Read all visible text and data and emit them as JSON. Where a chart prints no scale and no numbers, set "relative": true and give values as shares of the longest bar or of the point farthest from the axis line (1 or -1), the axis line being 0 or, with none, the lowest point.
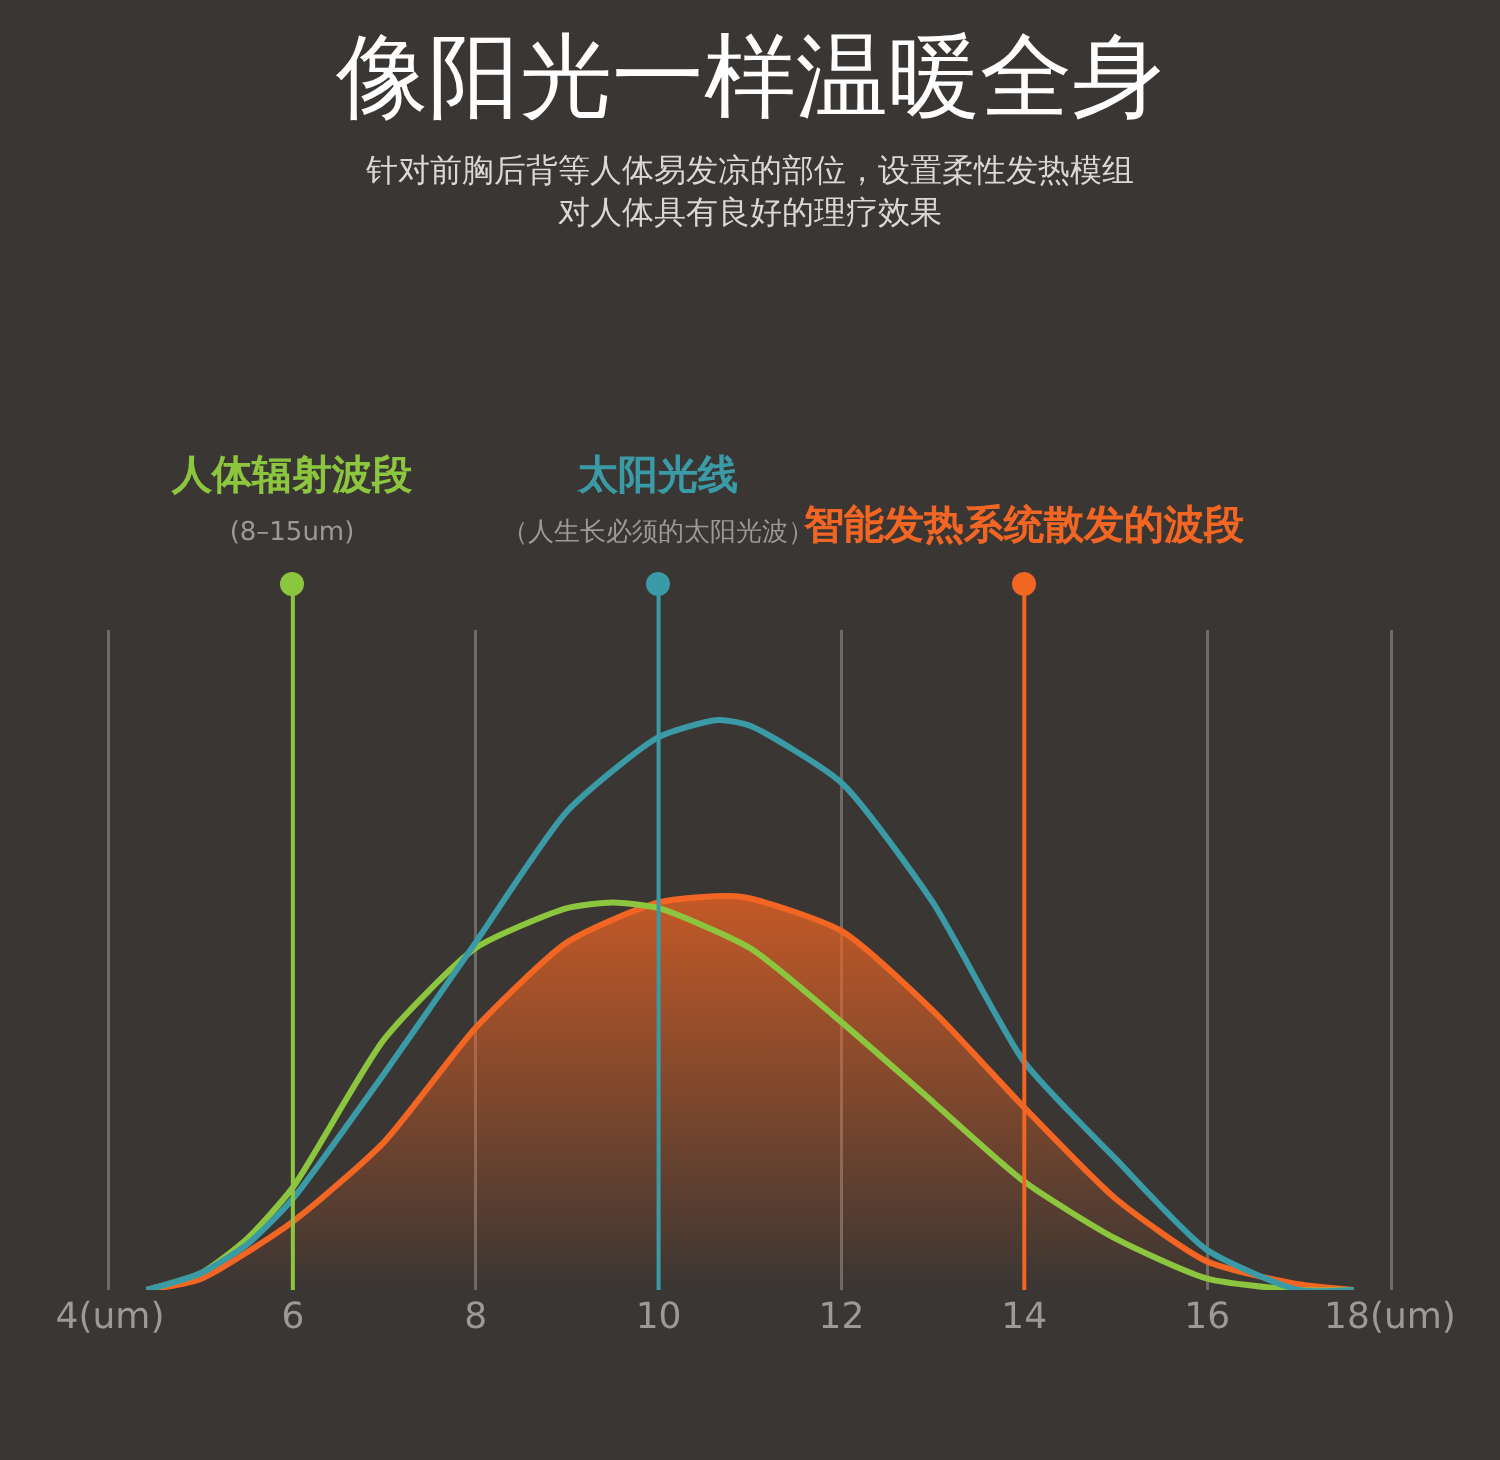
{
  "chart_data": {
    "type": "line",
    "title": "像阳光一样温暖全身",
    "subtitle": "针对前胸后背等人体易发凉的部位，设置柔性发热模组对人体具有良好的理疗效果",
    "relative": true,
    "xlim": [
      4,
      18
    ],
    "xticks": [
      {
        "value": 4,
        "label": "4(um)"
      },
      6,
      8,
      10,
      12,
      14,
      16,
      {
        "value": 18,
        "label": "18(um)"
      }
    ],
    "grid": "x",
    "tick_labels": "x",
    "marker": "none",
    "line_style": "solid",
    "series": [
      {
        "color": "#8cc63f",
        "x": [
          4.4,
          5,
          5.5,
          6,
          7,
          8,
          9,
          9.5,
          10,
          11,
          12,
          13,
          14,
          15,
          16,
          17,
          17.6
        ],
        "values": [
          0,
          0.03,
          0.09,
          0.18,
          0.44,
          0.6,
          0.67,
          0.68,
          0.67,
          0.6,
          0.47,
          0.33,
          0.19,
          0.09,
          0.02,
          0,
          0
        ]
      },
      {
        "color": "#3a9aa6",
        "x": [
          4.4,
          5,
          5.5,
          6,
          7,
          8,
          9,
          10,
          10.65,
          11,
          12,
          13,
          14,
          15,
          16,
          17,
          17.6
        ],
        "values": [
          0,
          0.03,
          0.08,
          0.16,
          0.38,
          0.61,
          0.84,
          0.97,
          1,
          0.99,
          0.89,
          0.68,
          0.4,
          0.23,
          0.07,
          0,
          0
        ]
      },
      {
        "type": "area",
        "color": "#f26522",
        "x": [
          4.4,
          5,
          6,
          7,
          8,
          9,
          10,
          10.9,
          12,
          13,
          14,
          15,
          16,
          17,
          17.6
        ],
        "values": [
          0,
          0.02,
          0.12,
          0.26,
          0.46,
          0.61,
          0.68,
          0.69,
          0.63,
          0.49,
          0.32,
          0.16,
          0.05,
          0.01,
          0
        ]
      }
    ],
    "ref_lines": [
      {
        "axis": "x",
        "value": 6,
        "label": "人体辐射波段(8–15um)",
        "color": "#8cc63f"
      },
      {
        "axis": "x",
        "value": 10,
        "label": "太阳光线（人生长必须的太阳光波）",
        "color": "#3a9aa6"
      },
      {
        "axis": "x",
        "value": 14,
        "label": "智能发热系统散发的波段",
        "color": "#f26522"
      }
    ]
  }
}
